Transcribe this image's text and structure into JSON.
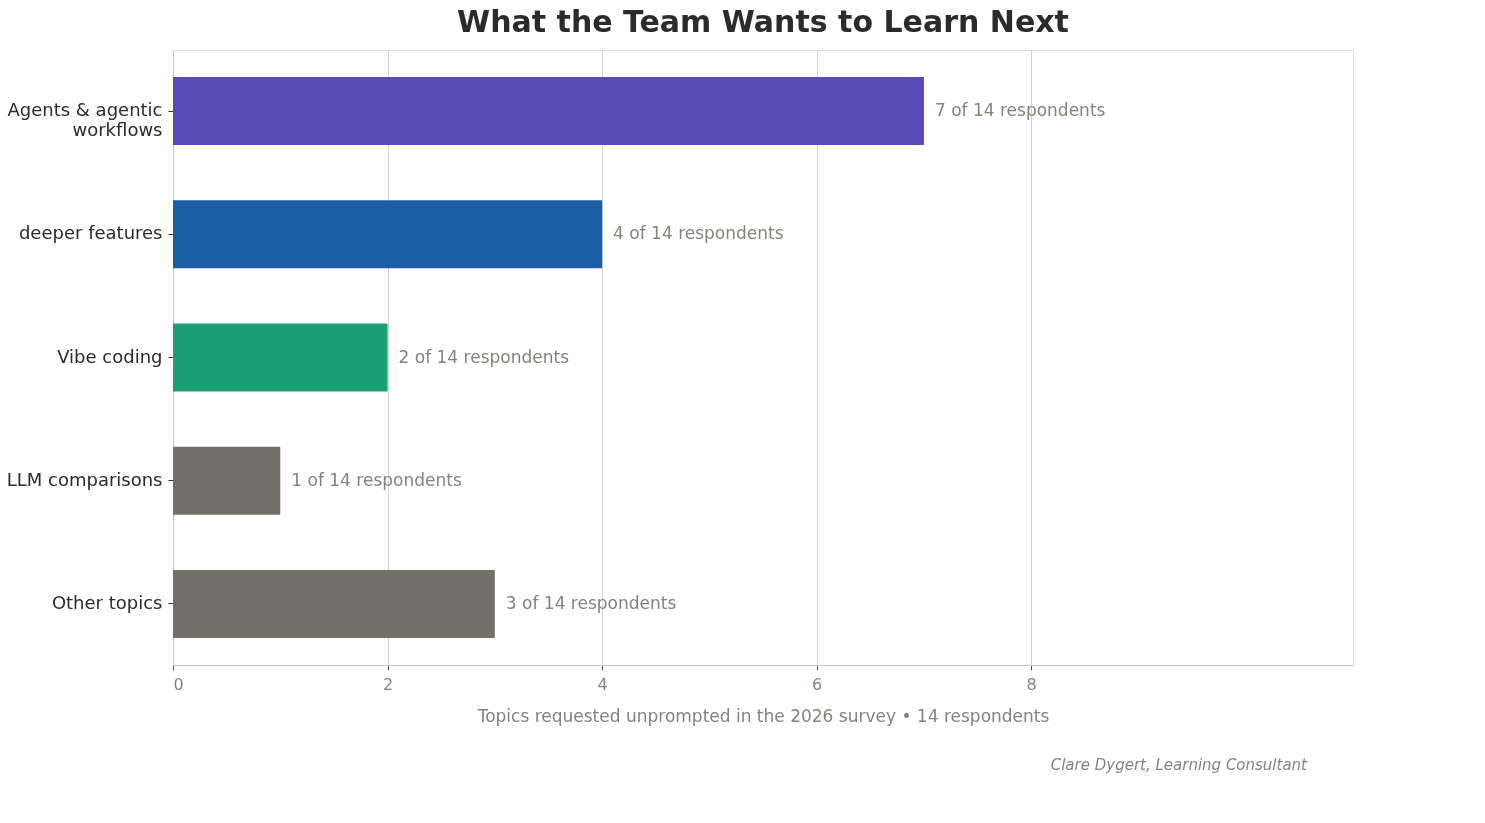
{
  "chart_data": {
    "type": "bar",
    "orientation": "horizontal",
    "title": "What the Team Wants to Learn Next",
    "categories": [
      "Agents & agentic workflows",
      "deeper features",
      "Vibe coding",
      "LLM comparisons",
      "Other topics"
    ],
    "values": [
      7,
      4,
      2,
      1,
      3
    ],
    "colors": [
      "#574bb5",
      "#1a5fa6",
      "#1c9e74",
      "#73706a",
      "#73706a"
    ],
    "value_labels": [
      "7 of 14 respondents",
      "4 of 14 respondents",
      "2 of 14 respondents",
      "1 of 14 respondents",
      "3 of 14 respondents"
    ],
    "xlabel": "Topics requested unprompted in the 2026 survey  •  14 respondents",
    "xlim": [
      0,
      11
    ],
    "xticks": [
      0,
      2,
      4,
      6,
      8
    ],
    "grid": "x",
    "annotations": [
      "Clare Dygert, Learning Consultant"
    ]
  }
}
